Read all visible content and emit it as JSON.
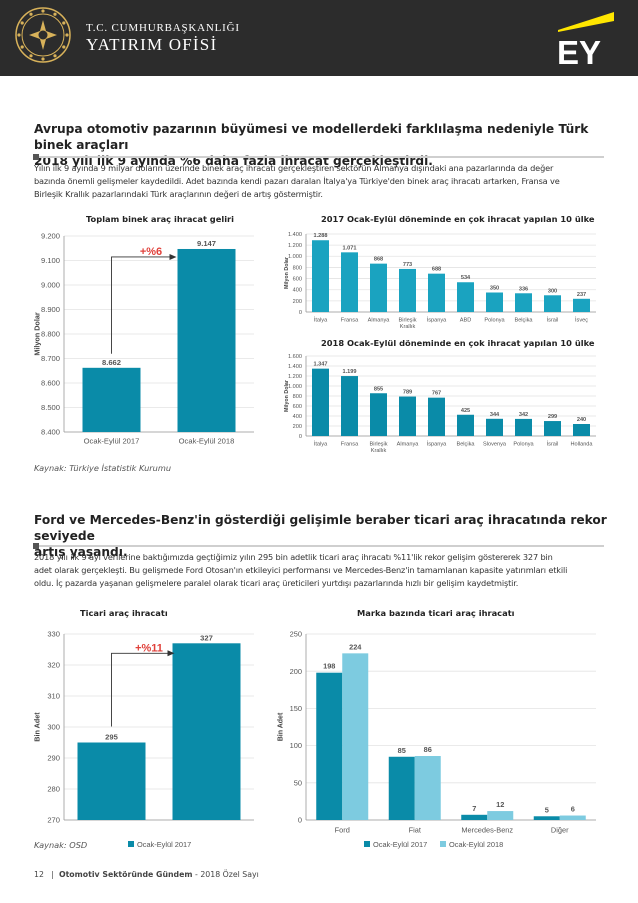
{
  "header": {
    "org_line1": "T.C. CUMHURBAŞKANLIĞI",
    "org_line2": "YATIRIM OFİSİ",
    "partner_logo": "EY"
  },
  "section1": {
    "title_line1": "Avrupa otomotiv pazarının büyümesi ve modellerdeki farklılaşma nedeniyle Türk binek araçları",
    "title_line2": "2018 yılı ilk 9 ayında %6 daha fazla ihracat gerçekleştirdi.",
    "para_line1": "Yılın ilk 9 ayında 9 milyar doların üzerinde binek araç ihracatı gerçekleştiren sektörün Almanya dışındaki ana pazarlarında da değer",
    "para_line2": "bazında önemli gelişmeler kaydedildi. Adet bazında kendi pazarı daralan İtalya'ya Türkiye'den binek araç ihracatı artarken, Fransa ve",
    "para_line3": "Birleşik Krallık pazarlarındaki Türk araçlarının değeri de artış göstermiştir.",
    "source": "Kaynak: Türkiye İstatistik Kurumu"
  },
  "section2": {
    "title_line1": "Ford ve Mercedes-Benz'in gösterdiği gelişimle beraber ticari araç ihracatında rekor seviyede",
    "title_line2": "artış yaşandı.",
    "para_line1": "2018 yılı ilk 9 ayı verilerine baktığımızda geçtiğimiz yılın 295 bin adetlik ticari araç ihracatı %11'lik rekor gelişim göstererek 327 bin",
    "para_line2": "adet olarak gerçekleşti. Bu gelişmede Ford Otosan'ın etkileyici performansı ve Mercedes-Benz'in tamamlanan kapasite yatırımları etkili",
    "para_line3": "oldu. İç pazarda yaşanan gelişmelere paralel olarak ticari araç üreticileri yurtdışı pazarlarında hızlı bir gelişim kaydetmiştir.",
    "source": "Kaynak: OSD"
  },
  "footer": {
    "page_number": "12",
    "publication": "Otomotiv Sektöründe Gündem",
    "edition": " - 2018 Özel Sayı"
  },
  "colors": {
    "teal_dark": "#0a8ba8",
    "teal_mid": "#1aa3c0",
    "teal_light": "#7dcbe0",
    "accent_red": "#e0413b",
    "ey_yellow": "#ffe600"
  },
  "chart_data": [
    {
      "id": "passenger_total",
      "type": "bar",
      "title": "Toplam binek araç ihracat geliri",
      "ylabel": "Milyon Dolar",
      "ylim": [
        8400,
        9200
      ],
      "yticks": [
        8400,
        8500,
        8600,
        8700,
        8800,
        8900,
        9000,
        9100,
        9200
      ],
      "ytick_labels": [
        "8.400",
        "8.500",
        "8.600",
        "8.700",
        "8.800",
        "8.900",
        "9.000",
        "9.100",
        "9.200"
      ],
      "categories": [
        "Ocak-Eylül 2017",
        "Ocak-Eylül 2018"
      ],
      "values": [
        8662,
        9147
      ],
      "value_labels": [
        "8.662",
        "9.147"
      ],
      "annotation": "+%6",
      "grid": true
    },
    {
      "id": "top10_2017",
      "type": "bar",
      "title": "2017 Ocak-Eylül döneminde en çok ihracat yapılan 10 ülke",
      "ylabel": "Milyon Dolar",
      "ylim": [
        0,
        1400
      ],
      "yticks": [
        0,
        200,
        400,
        600,
        800,
        1000,
        1200,
        1400
      ],
      "ytick_labels": [
        "0",
        "200",
        "400",
        "600",
        "800",
        "1.000",
        "1.200",
        "1.400"
      ],
      "categories": [
        "İtalya",
        "Fransa",
        "Almanya",
        "Birleşik Krallık",
        "İspanya",
        "ABD",
        "Polonya",
        "Belçika",
        "İsrail",
        "İsveç"
      ],
      "category_lines": [
        [
          "İtalya"
        ],
        [
          "Fransa"
        ],
        [
          "Almanya"
        ],
        [
          "Birleşik",
          "Krallık"
        ],
        [
          "İspanya"
        ],
        [
          "ABD"
        ],
        [
          "Polonya"
        ],
        [
          "Belçika"
        ],
        [
          "İsrail"
        ],
        [
          "İsveç"
        ]
      ],
      "values": [
        1288,
        1071,
        868,
        773,
        688,
        534,
        350,
        336,
        300,
        237
      ],
      "value_labels": [
        "1.288",
        "1.071",
        "868",
        "773",
        "688",
        "534",
        "350",
        "336",
        "300",
        "237"
      ],
      "grid": true
    },
    {
      "id": "top10_2018",
      "type": "bar",
      "title": "2018 Ocak-Eylül döneminde en çok ihracat yapılan 10 ülke",
      "ylabel": "Milyon Dolar",
      "ylim": [
        0,
        1600
      ],
      "yticks": [
        0,
        200,
        400,
        600,
        800,
        1000,
        1200,
        1400,
        1600
      ],
      "ytick_labels": [
        "0",
        "200",
        "400",
        "600",
        "800",
        "1.000",
        "1.200",
        "1.400",
        "1.600"
      ],
      "categories": [
        "İtalya",
        "Fransa",
        "Birleşik Krallık",
        "Almanya",
        "İspanya",
        "Belçika",
        "Slovenya",
        "Polonya",
        "İsrail",
        "Hollanda"
      ],
      "category_lines": [
        [
          "İtalya"
        ],
        [
          "Fransa"
        ],
        [
          "Birleşik",
          "Krallık"
        ],
        [
          "Almanya"
        ],
        [
          "İspanya"
        ],
        [
          "Belçika"
        ],
        [
          "Slovenya"
        ],
        [
          "Polonya"
        ],
        [
          "İsrail"
        ],
        [
          "Hollanda"
        ]
      ],
      "values": [
        1347,
        1199,
        855,
        789,
        767,
        425,
        344,
        342,
        299,
        240
      ],
      "value_labels": [
        "1.347",
        "1.199",
        "855",
        "789",
        "767",
        "425",
        "344",
        "342",
        "299",
        "240"
      ],
      "grid": true
    },
    {
      "id": "commercial_total",
      "type": "bar",
      "title": "Ticari araç ihracatı",
      "ylabel": "Bin Adet",
      "ylim": [
        270,
        330
      ],
      "yticks": [
        270,
        280,
        290,
        300,
        310,
        320,
        330
      ],
      "ytick_labels": [
        "270",
        "280",
        "290",
        "300",
        "310",
        "320",
        "330"
      ],
      "categories": [
        "",
        ""
      ],
      "values": [
        295,
        327
      ],
      "value_labels": [
        "295",
        "327"
      ],
      "annotation": "+%11",
      "legend": [
        "Ocak-Eylül 2017"
      ],
      "legend_position": "bottom",
      "grid": true
    },
    {
      "id": "commercial_brand",
      "type": "bar",
      "title": "Marka bazında ticari araç ihracatı",
      "ylabel": "Bin Adet",
      "ylim": [
        0,
        250
      ],
      "yticks": [
        0,
        50,
        100,
        150,
        200,
        250
      ],
      "ytick_labels": [
        "0",
        "50",
        "100",
        "150",
        "200",
        "250"
      ],
      "categories": [
        "Ford",
        "Fiat",
        "Mercedes-Benz",
        "Diğer"
      ],
      "series": [
        {
          "name": "Ocak-Eylül 2017",
          "values": [
            198,
            85,
            7,
            5
          ]
        },
        {
          "name": "Ocak-Eylül 2018",
          "values": [
            224,
            86,
            12,
            6
          ]
        }
      ],
      "legend_position": "bottom",
      "grid": true
    }
  ]
}
